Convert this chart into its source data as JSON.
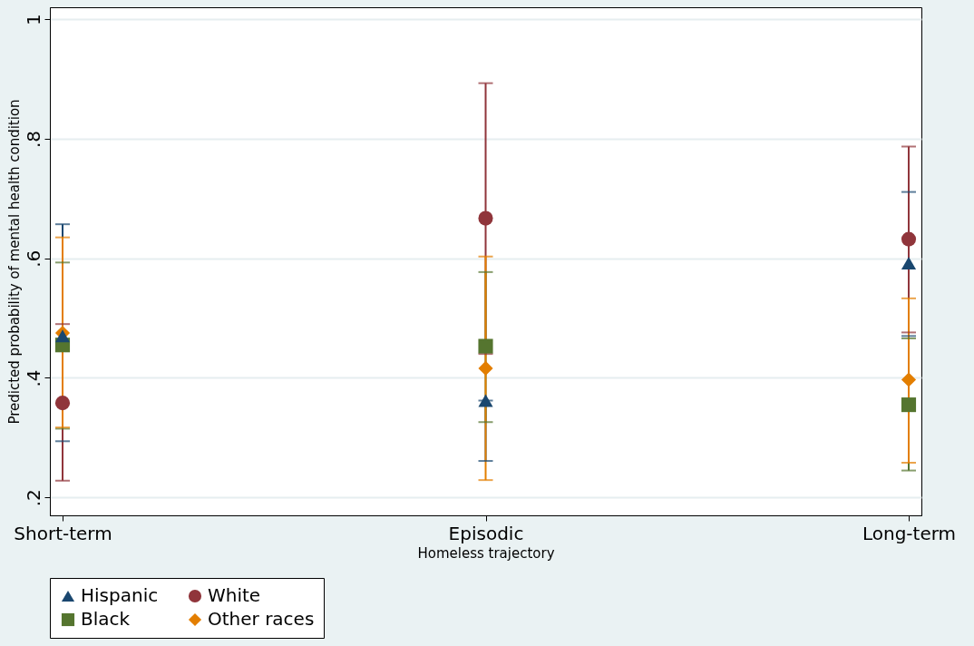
{
  "chart_data": {
    "type": "scatter",
    "xlabel": "Homeless trajectory",
    "ylabel": "Predicted probability of mental health condition",
    "categories": [
      "Short-term",
      "Episodic",
      "Long-term"
    ],
    "series": [
      {
        "name": "Hispanic",
        "color": "#1a476f",
        "marker": "triangle",
        "values": [
          0.47,
          0.362,
          0.592
        ],
        "errors": [
          [
            0.294,
            0.657
          ],
          [
            0.261,
            0.362
          ],
          [
            0.47,
            0.711
          ]
        ]
      },
      {
        "name": "White",
        "color": "#90353b",
        "marker": "circle",
        "values": [
          0.358,
          0.667,
          0.632
        ],
        "errors": [
          [
            0.228,
            0.49
          ],
          [
            0.44,
            0.893
          ],
          [
            0.476,
            0.787
          ]
        ]
      },
      {
        "name": "Black",
        "color": "#55752f",
        "marker": "square",
        "values": [
          0.455,
          0.453,
          0.355
        ],
        "errors": [
          [
            0.315,
            0.593
          ],
          [
            0.326,
            0.577
          ],
          [
            0.245,
            0.466
          ]
        ]
      },
      {
        "name": "Other races",
        "color": "#e37e00",
        "marker": "diamond",
        "values": [
          0.475,
          0.416,
          0.397
        ],
        "errors": [
          [
            0.317,
            0.635
          ],
          [
            0.229,
            0.603
          ],
          [
            0.258,
            0.533
          ]
        ]
      }
    ],
    "ylim": [
      0.17,
      1.02
    ],
    "yticks": [
      {
        "value": 0.2,
        "label": ".2"
      },
      {
        "value": 0.4,
        "label": ".4"
      },
      {
        "value": 0.6,
        "label": ".6"
      },
      {
        "value": 0.8,
        "label": ".8"
      },
      {
        "value": 1,
        "label": "1"
      }
    ],
    "grid": "y",
    "legend": "bottom"
  }
}
